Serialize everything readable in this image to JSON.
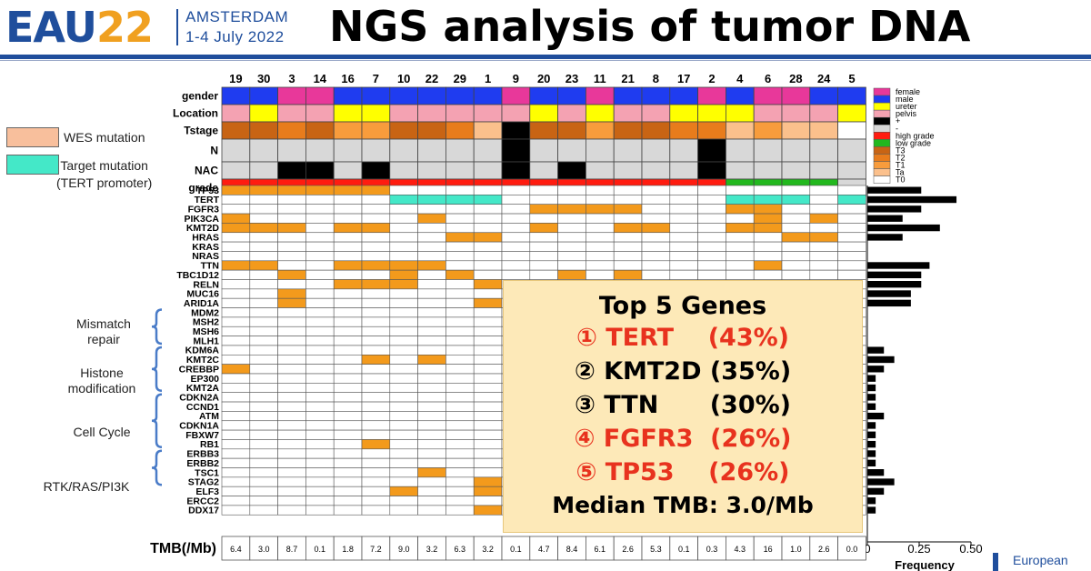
{
  "header": {
    "logo_text": "EAU",
    "logo_year": "22",
    "city": "AMSTERDAM",
    "dates": "1-4 July 2022",
    "title": "NGS analysis of tumor DNA"
  },
  "legend_left": [
    {
      "label": "WES mutation",
      "color": "#f8bf9c"
    },
    {
      "label": "Target mutation\n(TERT promoter)",
      "color": "#44e8c8"
    }
  ],
  "gene_groups": [
    {
      "label": "Mismatch\nrepair",
      "from": "MDM2",
      "to": "MLH1"
    },
    {
      "label": "Histone\nmodification",
      "from": "KDM6A",
      "to": "KMT2A"
    },
    {
      "label": "Cell Cycle",
      "from": "CDKN2A",
      "to": "RB1"
    },
    {
      "label": "RTK/RAS/PI3K",
      "from": "ERBB3",
      "to": "STAG2"
    }
  ],
  "summary": {
    "heading": "Top 5 Genes",
    "items": [
      {
        "text": "① TERT    (43%)",
        "color": "#e8321e"
      },
      {
        "text": "② KMT2D (35%)",
        "color": "#000000"
      },
      {
        "text": "③ TTN      (30%)",
        "color": "#000000"
      },
      {
        "text": "④ FGFR3  (26%)",
        "color": "#e8321e"
      },
      {
        "text": "⑤ TP53    (26%)",
        "color": "#e8321e"
      }
    ],
    "footer": "Median TMB: 3.0/Mb"
  },
  "chart_data": {
    "type": "heatmap",
    "patients": [
      "19",
      "30",
      "3",
      "14",
      "16",
      "7",
      "10",
      "22",
      "29",
      "1",
      "9",
      "20",
      "23",
      "11",
      "21",
      "8",
      "17",
      "2",
      "4",
      "6",
      "28",
      "24",
      "5"
    ],
    "clinical_rows": [
      "gender",
      "Location",
      "Tstage",
      "N",
      "NAC",
      "grade"
    ],
    "clinical": {
      "gender": [
        "male",
        "male",
        "female",
        "female",
        "male",
        "male",
        "male",
        "male",
        "male",
        "male",
        "female",
        "male",
        "male",
        "female",
        "male",
        "male",
        "male",
        "female",
        "male",
        "female",
        "female",
        "male",
        "male"
      ],
      "Location": [
        "pelvis",
        "ureter",
        "pelvis",
        "pelvis",
        "ureter",
        "ureter",
        "pelvis",
        "pelvis",
        "pelvis",
        "pelvis",
        "pelvis",
        "ureter",
        "pelvis",
        "ureter",
        "pelvis",
        "pelvis",
        "ureter",
        "ureter",
        "ureter",
        "pelvis",
        "pelvis",
        "pelvis",
        "ureter"
      ],
      "Tstage": [
        "T3",
        "T3",
        "T2",
        "T3",
        "T1",
        "T1",
        "T3",
        "T3",
        "T2",
        "Ta",
        "+",
        "T3",
        "T3",
        "T1",
        "T3",
        "T3",
        "T2",
        "T2",
        "Ta",
        "T1",
        "Ta",
        "Ta",
        "T0"
      ],
      "N": [
        "-",
        "-",
        "-",
        "-",
        "-",
        "-",
        "-",
        "-",
        "-",
        "-",
        "+",
        "-",
        "-",
        "-",
        "-",
        "-",
        "-",
        "+",
        "-",
        "-",
        "-",
        "-",
        "-"
      ],
      "NAC": [
        "-",
        "-",
        "+",
        "+",
        "-",
        "+",
        "-",
        "-",
        "-",
        "-",
        "+",
        "-",
        "+",
        "-",
        "-",
        "-",
        "-",
        "+",
        "-",
        "-",
        "-",
        "-",
        "-"
      ],
      "grade": [
        "high grade",
        "high grade",
        "high grade",
        "high grade",
        "high grade",
        "high grade",
        "high grade",
        "high grade",
        "high grade",
        "high grade",
        "high grade",
        "high grade",
        "high grade",
        "high grade",
        "high grade",
        "high grade",
        "high grade",
        "high grade",
        "low grade",
        "low grade",
        "low grade",
        "low grade",
        "-"
      ]
    },
    "clinical_legend": [
      {
        "label": "female",
        "color": "#e8389a"
      },
      {
        "label": "male",
        "color": "#1f3cf0"
      },
      {
        "label": "ureter",
        "color": "#ffff00"
      },
      {
        "label": "pelvis",
        "color": "#f4a2b2"
      },
      {
        "label": "+",
        "color": "#000000"
      },
      {
        "label": "-",
        "color": "#d8d8d8"
      },
      {
        "label": "high grade",
        "color": "#ff1c10"
      },
      {
        "label": "low grade",
        "color": "#22b81e"
      },
      {
        "label": "T3",
        "color": "#c86414"
      },
      {
        "label": "T2",
        "color": "#e87c1c"
      },
      {
        "label": "T1",
        "color": "#f89c3c"
      },
      {
        "label": "Ta",
        "color": "#fbc08c"
      },
      {
        "label": "T0",
        "color": "#ffffff"
      }
    ],
    "genes": [
      "TP53",
      "TERT",
      "FGFR3",
      "PIK3CA",
      "KMT2D",
      "HRAS",
      "KRAS",
      "NRAS",
      "TTN",
      "TBC1D12",
      "RELN",
      "MUC16",
      "ARID1A",
      "MDM2",
      "MSH2",
      "MSH6",
      "MLH1",
      "KDM6A",
      "KMT2C",
      "CREBBP",
      "EP300",
      "KMT2A",
      "CDKN2A",
      "CCND1",
      "ATM",
      "CDKN1A",
      "FBXW7",
      "RB1",
      "ERBB3",
      "ERBB2",
      "TSC1",
      "STAG2",
      "ELF3",
      "ERCC2",
      "DDX17"
    ],
    "wes_mutations": {
      "TP53": [
        "19",
        "30",
        "3",
        "14",
        "16",
        "7"
      ],
      "FGFR3": [
        "20",
        "23",
        "11",
        "21",
        "4",
        "6"
      ],
      "PIK3CA": [
        "19",
        "22",
        "6",
        "24"
      ],
      "KMT2D": [
        "19",
        "30",
        "3",
        "16",
        "7",
        "20",
        "21",
        "8",
        "4",
        "6"
      ],
      "HRAS": [
        "29",
        "1",
        "28",
        "24"
      ],
      "TTN": [
        "19",
        "30",
        "16",
        "7",
        "10",
        "22",
        "6"
      ],
      "TBC1D12": [
        "3",
        "10",
        "29",
        "23",
        "21"
      ],
      "RELN": [
        "16",
        "7",
        "10",
        "1"
      ],
      "MUC16": [
        "3"
      ],
      "ARID1A": [
        "3",
        "1"
      ],
      "KMT2C": [
        "7",
        "22"
      ],
      "CREBBP": [
        "19"
      ],
      "RB1": [
        "7"
      ],
      "TSC1": [
        "22"
      ],
      "STAG2": [
        "1"
      ],
      "ELF3": [
        "10",
        "1"
      ],
      "DDX17": [
        "1"
      ]
    },
    "target_mutations": {
      "TERT": [
        "10",
        "22",
        "29",
        "1",
        "4",
        "6",
        "28",
        "5"
      ]
    },
    "frequency": [
      0.26,
      0.43,
      0.26,
      0.17,
      0.35,
      0.17,
      0,
      0,
      0.3,
      0.26,
      0.26,
      0.21,
      0.21,
      0,
      0,
      0,
      0,
      0.08,
      0.13,
      0.08,
      0.04,
      0.04,
      0.04,
      0.04,
      0.08,
      0.04,
      0.04,
      0.04,
      0.04,
      0.04,
      0.08,
      0.13,
      0.08,
      0.04,
      0.04
    ],
    "frequency_axis": {
      "label": "Frequency",
      "ticks": [
        "0",
        "0.25",
        "0.50"
      ],
      "range": [
        0,
        0.5
      ]
    },
    "tmb_label": "TMB(/Mb)",
    "tmb": [
      "6.4",
      "3.0",
      "8.7",
      "0.1",
      "1.8",
      "7.2",
      "9.0",
      "3.2",
      "6.3",
      "3.2",
      "0.1",
      "4.7",
      "8.4",
      "6.1",
      "2.6",
      "5.3",
      "0.1",
      "0.3",
      "4.3",
      "16",
      "1.0",
      "2.6",
      "0.0"
    ]
  },
  "footer_logo": "European",
  "colors": {
    "brand_blue": "#1f4e9c",
    "wes": "#f39a1c",
    "target": "#44e8c8",
    "summary_bg": "#fde9b8"
  }
}
